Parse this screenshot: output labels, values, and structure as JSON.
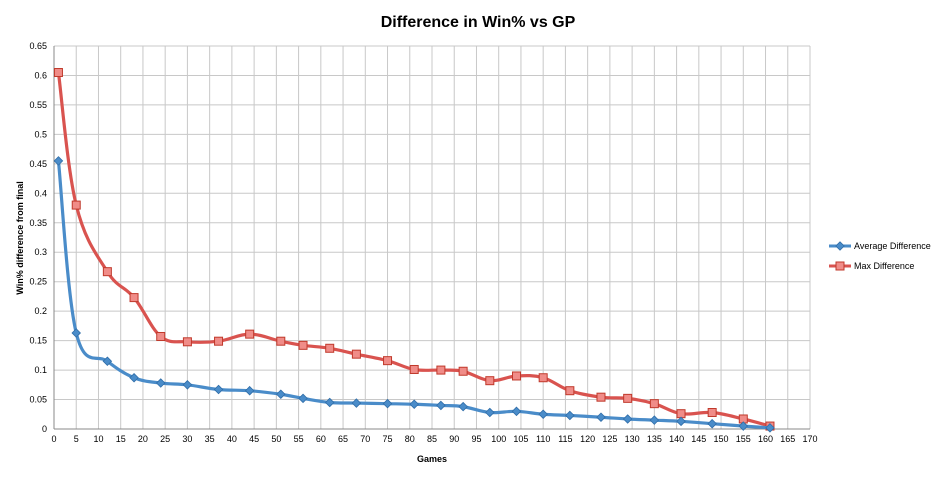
{
  "chart_data": {
    "type": "line",
    "title": "Difference in Win% vs GP",
    "xlabel": "Games",
    "ylabel": "Win% difference from final",
    "xlim": [
      0,
      170
    ],
    "ylim": [
      0,
      0.65
    ],
    "x_ticks": [
      "0",
      "5",
      "10",
      "15",
      "20",
      "25",
      "30",
      "35",
      "40",
      "45",
      "50",
      "55",
      "60",
      "65",
      "70",
      "75",
      "80",
      "85",
      "90",
      "95",
      "100",
      "105",
      "110",
      "115",
      "120",
      "125",
      "130",
      "135",
      "140",
      "145",
      "150",
      "155",
      "160",
      "165",
      "170"
    ],
    "y_ticks": [
      "0",
      "0.05",
      "0.1",
      "0.15",
      "0.2",
      "0.25",
      "0.3",
      "0.35",
      "0.4",
      "0.45",
      "0.5",
      "0.55",
      "0.6",
      "0.65"
    ],
    "grid": true,
    "legend_position": "right",
    "series": [
      {
        "name": "Average Difference",
        "color": "#4a8cc9",
        "marker": "diamond",
        "x": [
          1,
          5,
          12,
          18,
          24,
          30,
          37,
          44,
          51,
          56,
          62,
          68,
          75,
          81,
          87,
          92,
          98,
          104,
          110,
          116,
          123,
          129,
          135,
          141,
          148,
          155,
          161
        ],
        "y": [
          0.455,
          0.163,
          0.115,
          0.087,
          0.078,
          0.075,
          0.067,
          0.065,
          0.059,
          0.052,
          0.045,
          0.044,
          0.043,
          0.042,
          0.04,
          0.038,
          0.028,
          0.03,
          0.025,
          0.023,
          0.02,
          0.017,
          0.015,
          0.013,
          0.009,
          0.005,
          0.002
        ]
      },
      {
        "name": "Max Difference",
        "color": "#d9534f",
        "marker": "square",
        "x": [
          1,
          5,
          12,
          18,
          24,
          30,
          37,
          44,
          51,
          56,
          62,
          68,
          75,
          81,
          87,
          92,
          98,
          104,
          110,
          116,
          123,
          129,
          135,
          141,
          148,
          155,
          161
        ],
        "y": [
          0.605,
          0.38,
          0.267,
          0.223,
          0.157,
          0.148,
          0.149,
          0.161,
          0.149,
          0.142,
          0.137,
          0.127,
          0.116,
          0.101,
          0.1,
          0.098,
          0.082,
          0.09,
          0.087,
          0.065,
          0.054,
          0.052,
          0.043,
          0.026,
          0.028,
          0.017,
          0.005
        ]
      }
    ]
  }
}
